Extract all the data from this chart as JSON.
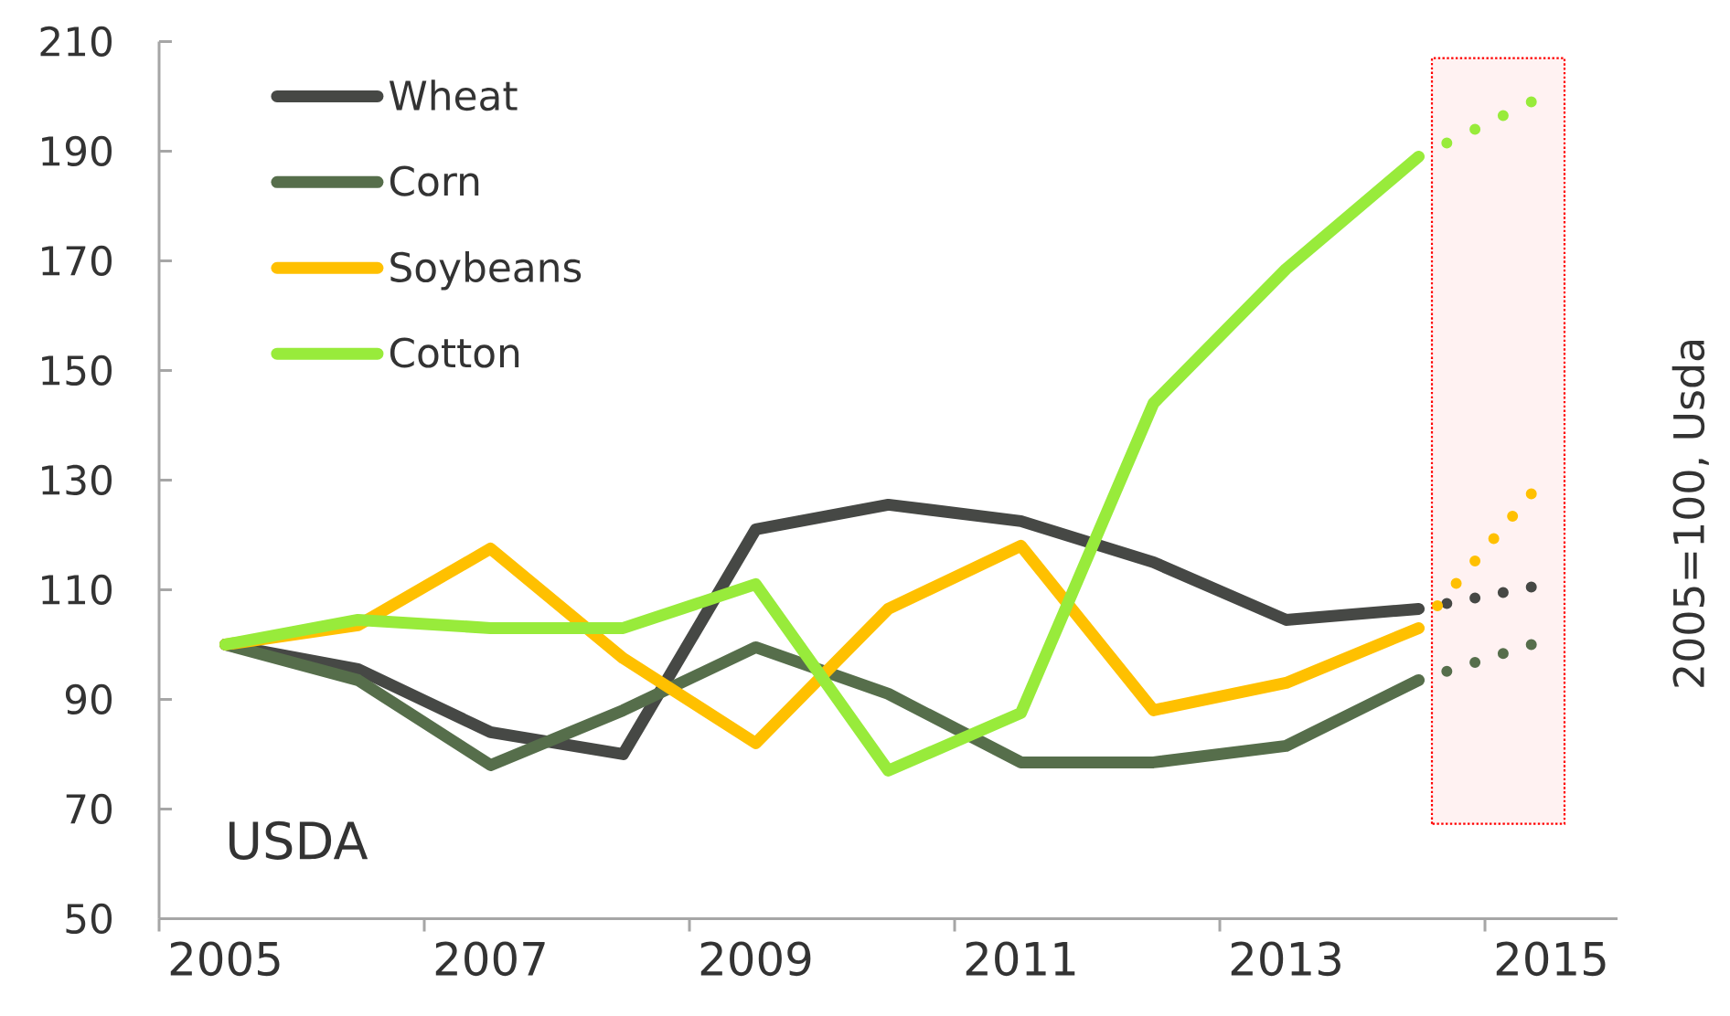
{
  "chart_data": {
    "type": "line",
    "x": [
      2005,
      2006,
      2007,
      2008,
      2009,
      2010,
      2011,
      2012,
      2013,
      2014,
      2014.85
    ],
    "series": [
      {
        "name": "Wheat",
        "color": "#464845",
        "line_style": "solid",
        "values": [
          100,
          95.5,
          84,
          80,
          121,
          125.5,
          122.5,
          115,
          104.5,
          106.5,
          null
        ]
      },
      {
        "name": "Corn",
        "color": "#566e4b",
        "line_style": "solid",
        "values": [
          100,
          93.5,
          78,
          88,
          99.5,
          91,
          78.5,
          78.5,
          81.5,
          93.5,
          null
        ]
      },
      {
        "name": "Soybeans",
        "color": "#ffc000",
        "line_style": "solid",
        "values": [
          100,
          103.5,
          117.5,
          97.5,
          82,
          106.5,
          118,
          88,
          93,
          103,
          null
        ]
      },
      {
        "name": "Cotton",
        "color": "#98eb3b",
        "line_style": "solid",
        "values": [
          100,
          104.5,
          103,
          103,
          111,
          77,
          87.5,
          144,
          168.5,
          189,
          null
        ]
      },
      {
        "color": "#464845",
        "line_style": "dotted",
        "values": [
          null,
          null,
          null,
          null,
          null,
          null,
          null,
          null,
          null,
          106.5,
          110.5
        ]
      },
      {
        "color": "#566e4b",
        "line_style": "dotted",
        "values": [
          null,
          null,
          null,
          null,
          null,
          null,
          null,
          null,
          null,
          93.5,
          100
        ]
      },
      {
        "color": "#ffc000",
        "line_style": "dotted",
        "values": [
          null,
          null,
          null,
          null,
          null,
          null,
          null,
          null,
          null,
          103,
          127.5
        ]
      },
      {
        "color": "#98eb3b",
        "line_style": "dotted",
        "values": [
          null,
          null,
          null,
          null,
          null,
          null,
          null,
          null,
          null,
          189,
          199
        ]
      }
    ],
    "ylabel": "2005=100, Usda",
    "annotations": [
      "USDA"
    ],
    "xlim": [
      2004.5,
      2015.5
    ],
    "xticks": [
      {
        "value": 2004.5,
        "label": null
      },
      2005,
      {
        "value": 2006.5,
        "label": null
      },
      2007,
      {
        "value": 2008.5,
        "label": null
      },
      2009,
      {
        "value": 2010.5,
        "label": null
      },
      2011,
      {
        "value": 2012.5,
        "label": null
      },
      2013,
      {
        "value": 2014.5,
        "label": null
      },
      2015
    ],
    "ylim": [
      50,
      210
    ],
    "yticks": [
      50,
      70,
      90,
      110,
      130,
      150,
      170,
      190,
      210
    ],
    "legend": "top left",
    "bands": [
      {
        "axis": "x",
        "from": 2014.1,
        "to": 2015.1,
        "color": "#ff0000"
      }
    ]
  }
}
